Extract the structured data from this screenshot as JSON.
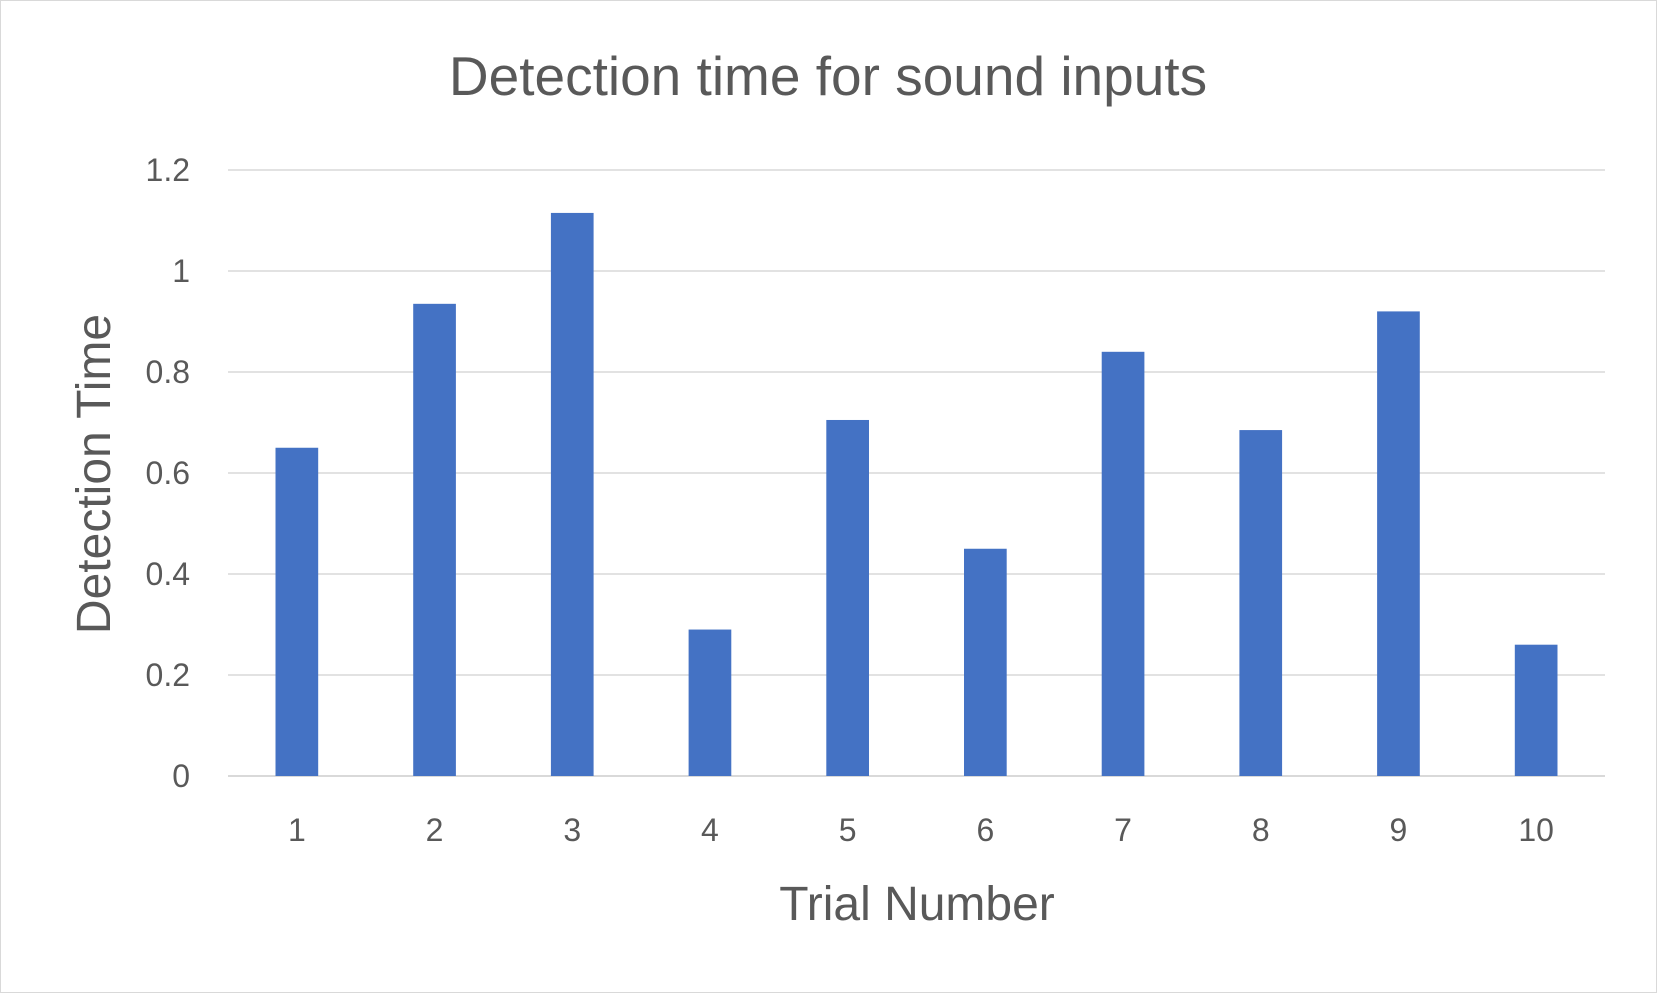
{
  "chart_data": {
    "type": "bar",
    "title": "Detection time for sound inputs",
    "xlabel": "Trial Number",
    "ylabel": "Detection Time",
    "categories": [
      "1",
      "2",
      "3",
      "4",
      "5",
      "6",
      "7",
      "8",
      "9",
      "10"
    ],
    "values": [
      0.65,
      0.935,
      1.115,
      0.29,
      0.705,
      0.45,
      0.84,
      0.685,
      0.92,
      0.26
    ],
    "ylim": [
      0,
      1.2
    ],
    "yticks": [
      "0",
      "0.2",
      "0.4",
      "0.6",
      "0.8",
      "1",
      "1.2"
    ],
    "grid": true,
    "legend": "none",
    "colors": {
      "bar": "#4472C4",
      "grid": "#d9d9d9",
      "text": "#595959"
    }
  }
}
